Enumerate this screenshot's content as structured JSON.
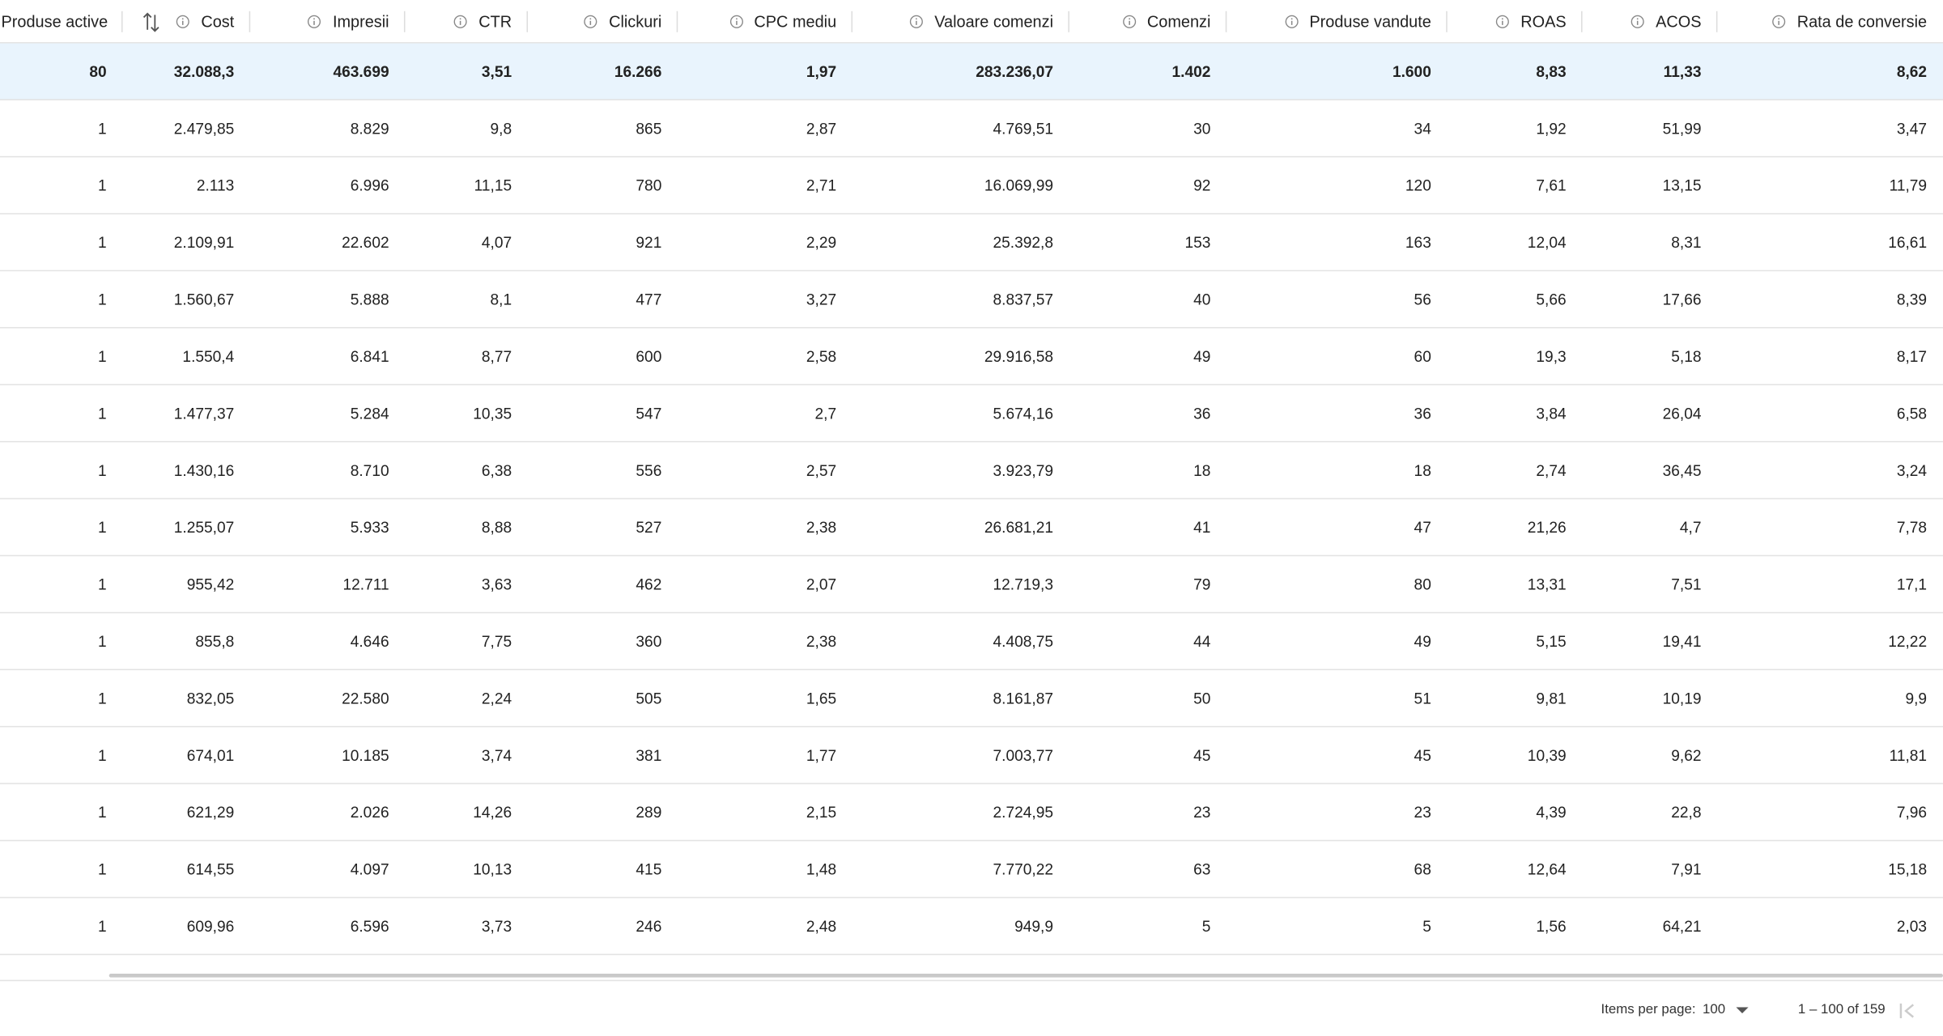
{
  "table": {
    "columns": [
      "Produse active",
      "Cost",
      "Impresii",
      "CTR",
      "Clickuri",
      "CPC mediu",
      "Valoare comenzi",
      "Comenzi",
      "Produse vandute",
      "ROAS",
      "ACOS",
      "Rata de conversie"
    ],
    "summary": [
      "80",
      "32.088,3",
      "463.699",
      "3,51",
      "16.266",
      "1,97",
      "283.236,07",
      "1.402",
      "1.600",
      "8,83",
      "11,33",
      "8,62"
    ],
    "rows": [
      [
        "1",
        "2.479,85",
        "8.829",
        "9,8",
        "865",
        "2,87",
        "4.769,51",
        "30",
        "34",
        "1,92",
        "51,99",
        "3,47"
      ],
      [
        "1",
        "2.113",
        "6.996",
        "11,15",
        "780",
        "2,71",
        "16.069,99",
        "92",
        "120",
        "7,61",
        "13,15",
        "11,79"
      ],
      [
        "1",
        "2.109,91",
        "22.602",
        "4,07",
        "921",
        "2,29",
        "25.392,8",
        "153",
        "163",
        "12,04",
        "8,31",
        "16,61"
      ],
      [
        "1",
        "1.560,67",
        "5.888",
        "8,1",
        "477",
        "3,27",
        "8.837,57",
        "40",
        "56",
        "5,66",
        "17,66",
        "8,39"
      ],
      [
        "1",
        "1.550,4",
        "6.841",
        "8,77",
        "600",
        "2,58",
        "29.916,58",
        "49",
        "60",
        "19,3",
        "5,18",
        "8,17"
      ],
      [
        "1",
        "1.477,37",
        "5.284",
        "10,35",
        "547",
        "2,7",
        "5.674,16",
        "36",
        "36",
        "3,84",
        "26,04",
        "6,58"
      ],
      [
        "1",
        "1.430,16",
        "8.710",
        "6,38",
        "556",
        "2,57",
        "3.923,79",
        "18",
        "18",
        "2,74",
        "36,45",
        "3,24"
      ],
      [
        "1",
        "1.255,07",
        "5.933",
        "8,88",
        "527",
        "2,38",
        "26.681,21",
        "41",
        "47",
        "21,26",
        "4,7",
        "7,78"
      ],
      [
        "1",
        "955,42",
        "12.711",
        "3,63",
        "462",
        "2,07",
        "12.719,3",
        "79",
        "80",
        "13,31",
        "7,51",
        "17,1"
      ],
      [
        "1",
        "855,8",
        "4.646",
        "7,75",
        "360",
        "2,38",
        "4.408,75",
        "44",
        "49",
        "5,15",
        "19,41",
        "12,22"
      ],
      [
        "1",
        "832,05",
        "22.580",
        "2,24",
        "505",
        "1,65",
        "8.161,87",
        "50",
        "51",
        "9,81",
        "10,19",
        "9,9"
      ],
      [
        "1",
        "674,01",
        "10.185",
        "3,74",
        "381",
        "1,77",
        "7.003,77",
        "45",
        "45",
        "10,39",
        "9,62",
        "11,81"
      ],
      [
        "1",
        "621,29",
        "2.026",
        "14,26",
        "289",
        "2,15",
        "2.724,95",
        "23",
        "23",
        "4,39",
        "22,8",
        "7,96"
      ],
      [
        "1",
        "614,55",
        "4.097",
        "10,13",
        "415",
        "1,48",
        "7.770,22",
        "63",
        "68",
        "12,64",
        "7,91",
        "15,18"
      ],
      [
        "1",
        "609,96",
        "6.596",
        "3,73",
        "246",
        "2,48",
        "949,9",
        "5",
        "5",
        "1,56",
        "64,21",
        "2,03"
      ]
    ]
  },
  "footer": {
    "items_per_page_label": "Items per page:",
    "items_per_page": "100",
    "range": "1 – 100 of 159"
  }
}
